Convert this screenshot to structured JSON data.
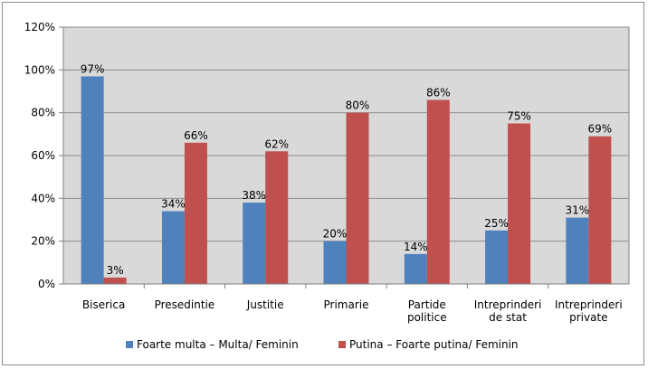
{
  "chart_data": {
    "type": "bar",
    "title": "",
    "xlabel": "",
    "ylabel": "",
    "ylim": [
      0,
      120
    ],
    "yticks": [
      "0%",
      "20%",
      "40%",
      "60%",
      "80%",
      "100%",
      "120%"
    ],
    "grid": true,
    "legend_position": "bottom",
    "categories": [
      [
        "Biserica"
      ],
      [
        "Presedintie"
      ],
      [
        "Justitie"
      ],
      [
        "Primarie"
      ],
      [
        "Partide",
        "politice"
      ],
      [
        "Intreprinderi",
        "de stat"
      ],
      [
        "Intreprinderi",
        "private"
      ]
    ],
    "series": [
      {
        "name": "Foarte multa – Multa/ Feminin",
        "color": "#4f81bd",
        "values": [
          97,
          34,
          38,
          20,
          14,
          25,
          31
        ],
        "labels": [
          "97%",
          "34%",
          "38%",
          "20%",
          "14%",
          "25%",
          "31%"
        ]
      },
      {
        "name": "Putina – Foarte putina/ Feminin",
        "color": "#c0504d",
        "values": [
          3,
          66,
          62,
          80,
          86,
          75,
          69
        ],
        "labels": [
          "3%",
          "66%",
          "62%",
          "80%",
          "86%",
          "75%",
          "69%"
        ]
      }
    ]
  }
}
